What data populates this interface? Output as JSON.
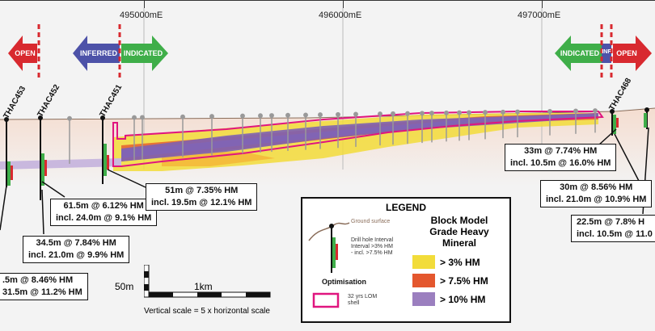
{
  "axis": {
    "eastings": [
      "495000mE",
      "496000mE",
      "497000mE"
    ]
  },
  "zones": {
    "open": "OPEN",
    "inferred": "INFERRED",
    "indicated": "INDICATED",
    "inf_short": "INF"
  },
  "drillholes": [
    "THAC453",
    "THAC452",
    "THAC451",
    "THAC468"
  ],
  "callouts": [
    {
      "line1": "61.5m @ 6.12% HM",
      "line2": "incl. 24.0m @ 9.1% HM"
    },
    {
      "line1": "34.5m @ 7.84% HM",
      "line2": "incl. 21.0m @ 9.9% HM"
    },
    {
      "line1": ".5m @ 8.46% HM",
      "line2": "31.5m @ 11.2% HM"
    },
    {
      "line1": "51m @ 7.35% HM",
      "line2": "incl. 19.5m @ 12.1% HM"
    },
    {
      "line1": "33m @ 7.74% HM",
      "line2": "incl. 10.5m @ 16.0% HM"
    },
    {
      "line1": "30m @ 8.56% HM",
      "line2": "incl. 21.0m @ 10.9% HM"
    },
    {
      "line1": "22.5m @ 7.8% H",
      "line2": "incl. 10.5m @ 11.0"
    }
  ],
  "legend": {
    "title": "LEGEND",
    "ground": "Ground surface",
    "drill1": "Drill hole Interval",
    "drill2": "Interval >3% HM",
    "drill3": "- incl. >7.5% HM",
    "optimisation": "Optimisation",
    "lom1": "32 yrs LOM",
    "lom2": "shell",
    "bm1": "Block Model",
    "bm2": "Grade Heavy",
    "bm3": "Mineral",
    "grade1": "> 3% HM",
    "grade2": "> 7.5% HM",
    "grade3": "> 10% HM",
    "colors": {
      "yellow": "#f2dc3a",
      "orange": "#e4572e",
      "purple": "#9b7fbf",
      "pink": "#e0157f",
      "green": "#3fae49",
      "blue": "#4d52a8",
      "red": "#d8292f"
    }
  },
  "scale": {
    "vertical": "50m",
    "horizontal": "1km",
    "note": "Vertical scale = 5 x horizontal scale"
  }
}
